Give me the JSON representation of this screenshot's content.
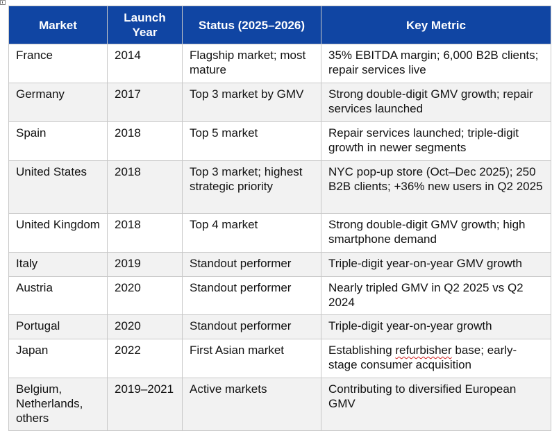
{
  "table": {
    "headers": [
      "Market",
      "Launch Year",
      "Status (2025–2026)",
      "Key Metric"
    ],
    "rows": [
      {
        "market": "France",
        "launch_year": "2014",
        "status": "Flagship market; most mature",
        "metric": "35% EBITDA margin; 6,000 B2B clients; repair services live"
      },
      {
        "market": "Germany",
        "launch_year": "2017",
        "status": "Top 3 market by GMV",
        "metric": "Strong double-digit GMV growth; repair services launched"
      },
      {
        "market": "Spain",
        "launch_year": "2018",
        "status": "Top 5 market",
        "metric": "Repair services launched; triple-digit growth in newer segments"
      },
      {
        "market": "United States",
        "launch_year": "2018",
        "status": "Top 3 market; highest strategic priority",
        "metric": "NYC pop-up store (Oct–Dec 2025); 250 B2B clients; +36% new users in Q2 2025"
      },
      {
        "market": "United Kingdom",
        "launch_year": "2018",
        "status": "Top 4 market",
        "metric": "Strong double-digit GMV growth; high smartphone demand"
      },
      {
        "market": "Italy",
        "launch_year": "2019",
        "status": "Standout performer",
        "metric": "Triple-digit year-on-year GMV growth"
      },
      {
        "market": "Austria",
        "launch_year": "2020",
        "status": "Standout performer",
        "metric": "Nearly tripled GMV in Q2 2025 vs Q2 2024"
      },
      {
        "market": "Portugal",
        "launch_year": "2020",
        "status": "Standout performer",
        "metric": "Triple-digit year-on-year growth"
      },
      {
        "market": "Japan",
        "launch_year": "2022",
        "status": "First Asian market",
        "metric_pre": "Establishing ",
        "metric_flagged": "refurbisher",
        "metric_post": " base; early-stage consumer acquisition"
      },
      {
        "market": "Belgium, Netherlands, others",
        "launch_year": "2019–2021",
        "status": "Active markets",
        "metric": "Contributing to diversified European GMV"
      }
    ]
  },
  "colors": {
    "header_background": "#1045a3",
    "header_text": "#ffffff",
    "striped_row": "#f2f2f2",
    "border": "#c8c8c8",
    "spellcheck_underline": "#d02020"
  }
}
